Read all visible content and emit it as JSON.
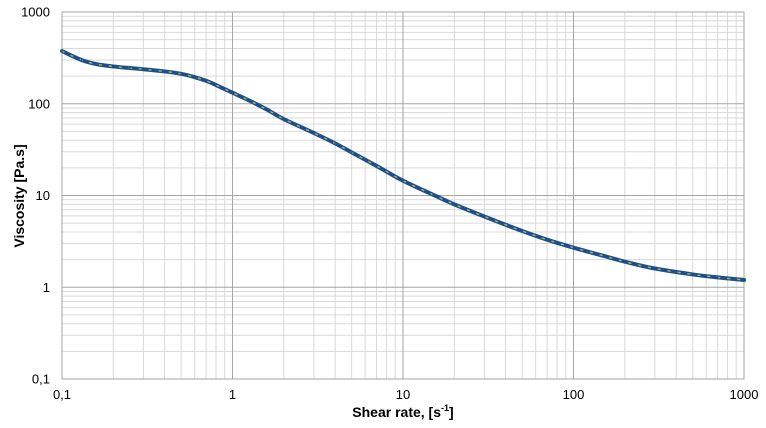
{
  "chart_data": {
    "type": "line",
    "title": "",
    "xlabel": "Shear rate, [s",
    "xlabel_superscript": "-1",
    "xlabel_suffix": "]",
    "ylabel": "Viscosity [Pa.s]",
    "x_scale": "log",
    "y_scale": "log",
    "xlim": [
      0.1,
      1000
    ],
    "ylim": [
      0.1,
      1000
    ],
    "x_ticks": [
      {
        "value": 0.1,
        "label": "0,1"
      },
      {
        "value": 1,
        "label": "1"
      },
      {
        "value": 10,
        "label": "10"
      },
      {
        "value": 100,
        "label": "100"
      },
      {
        "value": 1000,
        "label": "1000"
      }
    ],
    "y_ticks": [
      {
        "value": 0.1,
        "label": "0,1"
      },
      {
        "value": 1,
        "label": "1"
      },
      {
        "value": 10,
        "label": "10"
      },
      {
        "value": 100,
        "label": "100"
      },
      {
        "value": 1000,
        "label": "1000"
      }
    ],
    "grid": true,
    "minor_grid": true,
    "legend": "none",
    "series": [
      {
        "line_color": "#1f4e8c",
        "dash_color": "#9bbb59",
        "x": [
          0.1,
          0.13,
          0.16,
          0.2,
          0.25,
          0.3,
          0.4,
          0.5,
          0.6,
          0.7,
          0.8,
          1,
          1.3,
          1.6,
          2,
          3,
          4,
          5,
          7,
          10,
          15,
          20,
          30,
          50,
          70,
          100,
          150,
          200,
          300,
          500,
          700,
          1000
        ],
        "y": [
          375,
          300,
          270,
          255,
          245,
          238,
          225,
          212,
          195,
          178,
          160,
          132,
          105,
          86,
          68,
          48,
          37,
          29.5,
          21,
          14.5,
          10.2,
          8,
          5.9,
          4.1,
          3.3,
          2.7,
          2.2,
          1.9,
          1.6,
          1.38,
          1.28,
          1.2
        ]
      }
    ]
  }
}
